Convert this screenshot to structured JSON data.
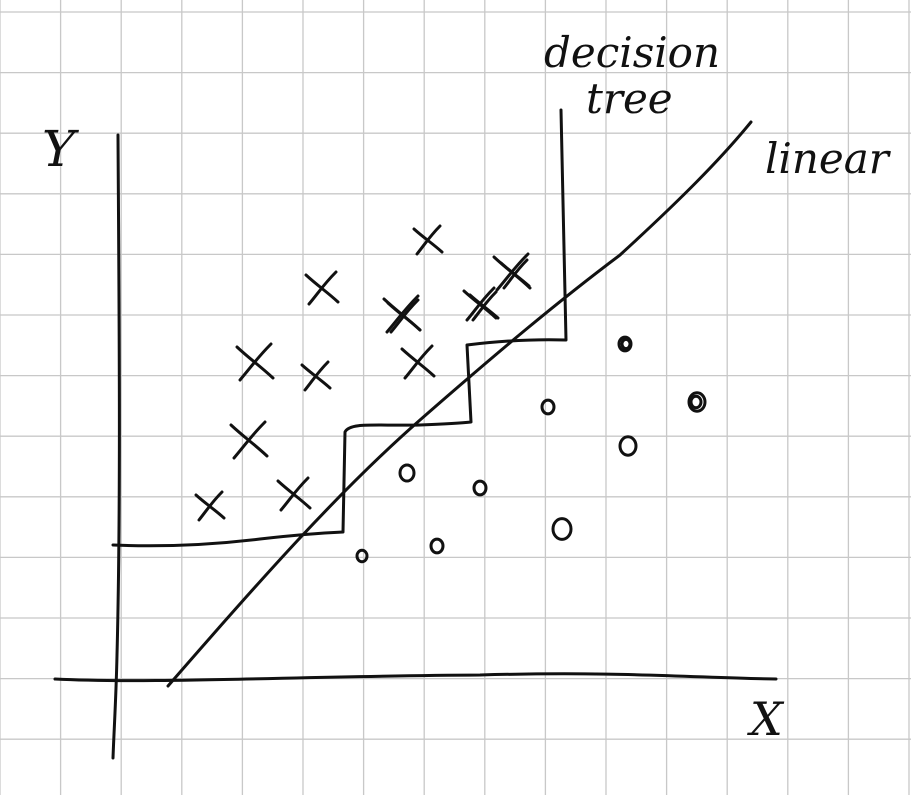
{
  "axes": {
    "x_label": "X",
    "y_label": "Y"
  },
  "annotations": {
    "decision_tree": [
      "decision",
      "tree"
    ],
    "linear": "linear"
  },
  "classes": {
    "cross": {
      "count": 14
    },
    "circle": {
      "count": 11
    }
  },
  "colors": {
    "ink": "#111111",
    "grid": "#c8c8c8",
    "paper": "#ffffff"
  }
}
